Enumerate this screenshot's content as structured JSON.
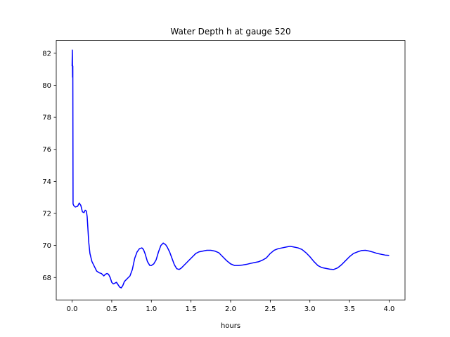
{
  "chart_data": {
    "type": "line",
    "title": "Water Depth h at gauge 520",
    "xlabel": "hours",
    "ylabel": "",
    "xlim": [
      -0.2,
      4.2
    ],
    "ylim": [
      66.6,
      82.8
    ],
    "xticks": [
      0.0,
      0.5,
      1.0,
      1.5,
      2.0,
      2.5,
      3.0,
      3.5,
      4.0
    ],
    "xtick_labels": [
      "0.0",
      "0.5",
      "1.0",
      "1.5",
      "2.0",
      "2.5",
      "3.0",
      "3.5",
      "4.0"
    ],
    "yticks": [
      68,
      70,
      72,
      74,
      76,
      78,
      80,
      82
    ],
    "ytick_labels": [
      "68",
      "70",
      "72",
      "74",
      "76",
      "78",
      "80",
      "82"
    ],
    "grid": false,
    "line_color": "#0000ff",
    "series": [
      {
        "x": [
          0.0,
          0.003,
          0.006,
          0.009,
          0.012,
          0.02,
          0.04,
          0.07,
          0.09,
          0.11,
          0.13,
          0.15,
          0.165,
          0.18,
          0.19,
          0.2,
          0.21,
          0.225,
          0.25,
          0.28,
          0.31,
          0.34,
          0.37,
          0.4,
          0.42,
          0.44,
          0.46,
          0.48,
          0.5,
          0.52,
          0.54,
          0.56,
          0.58,
          0.6,
          0.62,
          0.64,
          0.66,
          0.68,
          0.7,
          0.73,
          0.76,
          0.79,
          0.82,
          0.85,
          0.88,
          0.9,
          0.92,
          0.95,
          0.98,
          1.0,
          1.03,
          1.06,
          1.09,
          1.12,
          1.15,
          1.18,
          1.2,
          1.23,
          1.26,
          1.29,
          1.32,
          1.35,
          1.38,
          1.41,
          1.44,
          1.48,
          1.52,
          1.56,
          1.6,
          1.65,
          1.7,
          1.75,
          1.8,
          1.85,
          1.9,
          1.95,
          2.0,
          2.05,
          2.1,
          2.15,
          2.2,
          2.25,
          2.3,
          2.35,
          2.4,
          2.45,
          2.5,
          2.55,
          2.6,
          2.65,
          2.7,
          2.75,
          2.8,
          2.85,
          2.9,
          2.95,
          3.0,
          3.05,
          3.1,
          3.15,
          3.2,
          3.25,
          3.3,
          3.35,
          3.4,
          3.45,
          3.5,
          3.55,
          3.6,
          3.65,
          3.7,
          3.75,
          3.8,
          3.85,
          3.9,
          3.95,
          4.0
        ],
        "y": [
          81.2,
          82.2,
          80.5,
          81.2,
          72.6,
          72.5,
          72.4,
          72.45,
          72.65,
          72.5,
          72.1,
          72.05,
          72.2,
          72.15,
          71.8,
          71.0,
          70.2,
          69.5,
          69.0,
          68.7,
          68.4,
          68.3,
          68.25,
          68.1,
          68.2,
          68.25,
          68.2,
          68.0,
          67.7,
          67.6,
          67.65,
          67.7,
          67.55,
          67.4,
          67.35,
          67.5,
          67.75,
          67.85,
          67.95,
          68.1,
          68.5,
          69.2,
          69.6,
          69.8,
          69.85,
          69.75,
          69.5,
          69.0,
          68.75,
          68.75,
          68.85,
          69.1,
          69.6,
          70.0,
          70.15,
          70.05,
          69.9,
          69.6,
          69.2,
          68.8,
          68.55,
          68.5,
          68.6,
          68.75,
          68.9,
          69.1,
          69.3,
          69.5,
          69.6,
          69.65,
          69.7,
          69.7,
          69.65,
          69.55,
          69.3,
          69.05,
          68.85,
          68.75,
          68.75,
          68.78,
          68.82,
          68.88,
          68.93,
          68.98,
          69.08,
          69.22,
          69.5,
          69.7,
          69.8,
          69.85,
          69.9,
          69.95,
          69.9,
          69.85,
          69.75,
          69.55,
          69.3,
          69.0,
          68.75,
          68.62,
          68.57,
          68.52,
          68.5,
          68.6,
          68.8,
          69.05,
          69.3,
          69.5,
          69.6,
          69.68,
          69.7,
          69.65,
          69.58,
          69.5,
          69.45,
          69.4,
          69.38
        ]
      }
    ]
  }
}
